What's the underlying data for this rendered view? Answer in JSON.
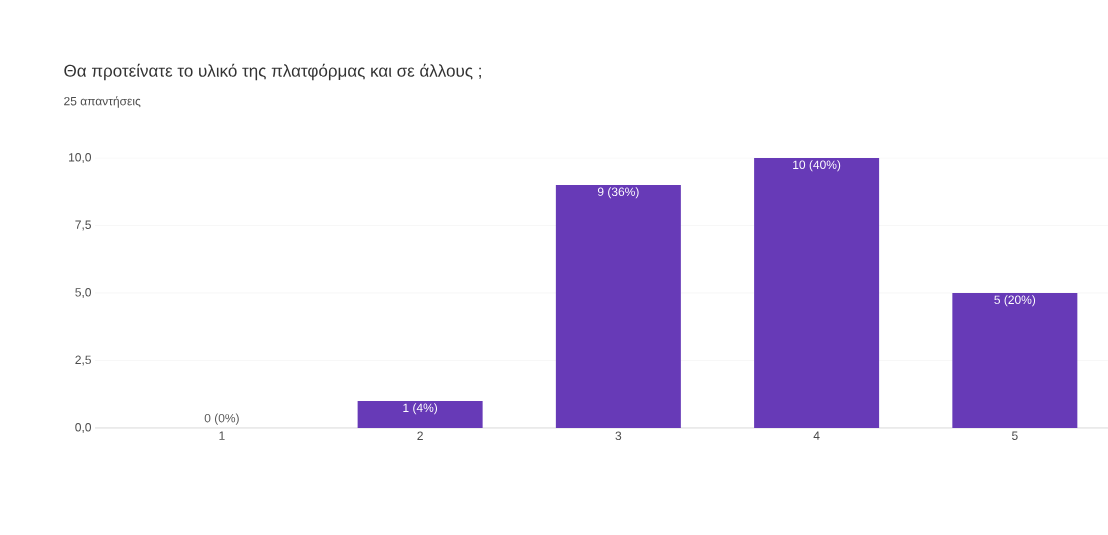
{
  "chart_data": {
    "type": "bar",
    "title": "Θα προτείνατε το υλικό της πλατφόρμας και σε άλλους ;",
    "subtitle": "25 απαντήσεις",
    "categories": [
      "1",
      "2",
      "3",
      "4",
      "5"
    ],
    "values": [
      0,
      1,
      9,
      10,
      5
    ],
    "value_labels": [
      "0 (0%)",
      "1 (4%)",
      "9 (36%)",
      "10 (40%)",
      "5 (20%)"
    ],
    "color": "#673ab7",
    "ylim": [
      0,
      10
    ],
    "yticks": [
      {
        "value": 0,
        "label": "0,0"
      },
      {
        "value": 2.5,
        "label": "2,5"
      },
      {
        "value": 5,
        "label": "5,0"
      },
      {
        "value": 7.5,
        "label": "7,5"
      },
      {
        "value": 10,
        "label": "10,0"
      }
    ],
    "grid": "y"
  }
}
